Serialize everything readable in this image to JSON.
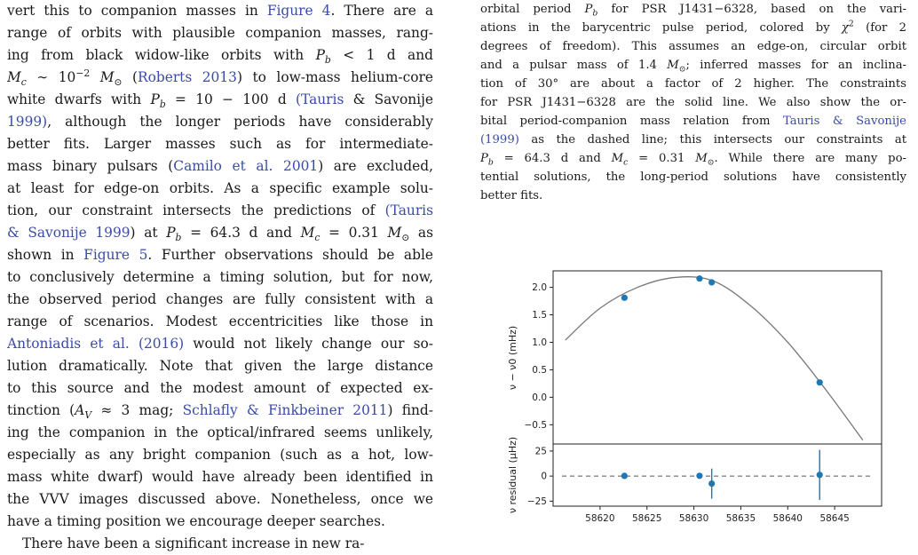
{
  "left_column": {
    "lines": [
      "vert this to companion masses in Figure 4. There are a",
      "range of orbits with plausible companion masses, rang-",
      "ing from black widow-like orbits with P_b < 1 d and",
      "M_c ∼ 10^−2 M_⊙ (Roberts 2013) to low-mass helium-core",
      "white dwarfs with P_b = 10 − 100 d (Tauris & Savonije",
      "1999), although the longer periods have considerably",
      "better fits. Larger masses such as for intermediate-",
      "mass binary pulsars (Camilo et al. 2001) are excluded,",
      "at least for edge-on orbits. As a specific example solu-",
      "tion, our constraint intersects the predictions of (Tauris",
      "& Savonije 1999) at P_b = 64.3 d and M_c = 0.31 M_⊙ as",
      "shown in Figure 5. Further observations should be able",
      "to conclusively determine a timing solution, but for now,",
      "the observed period changes are fully consistent with a",
      "range of scenarios. Modest eccentricities like those in",
      "Antoniadis et al. (2016) would not likely change our so-",
      "lution dramatically. Note that given the large distance",
      "to this source and the modest amount of expected ex-",
      "tinction (A_V ≈ 3 mag; Schlafly & Finkbeiner 2011) find-",
      "ing the companion in the optical/infrared seems unlikely,",
      "especially as any bright companion (such as a hot, low-",
      "mass white dwarf) would have already been identified in",
      "the VVV images discussed above. Nonetheless, once we",
      "have a timing position we encourage deeper searches.",
      "There have been a significant increase in new ra-"
    ]
  },
  "caption": {
    "lines": [
      "orbital period P_b for PSR J1431−6328, based on the vari-",
      "ations in the barycentric pulse period, colored by χ² (for 2",
      "degrees of freedom). This assumes an edge-on, circular orbit",
      "and a pulsar mass of 1.4 M_⊙; inferred masses for an inclina-",
      "tion of 30° are about a factor of 2 higher. The constraints",
      "for PSR J1431−6328 are the solid line. We also show the or-",
      "bital period-companion mass relation from Tauris & Savonije",
      "(1999) as the dashed line; this intersects our constraints at",
      "P_b = 64.3 d and M_c = 0.31 M_⊙. While there are many po-",
      "tential solutions, the long-period solutions have consistently",
      "better fits."
    ]
  },
  "colors": {
    "link": "#3b4ba8",
    "points": "#1f77b4",
    "model_curve": "#777777"
  },
  "chart_data": {
    "type": "scatter",
    "panels": [
      {
        "name": "frequency",
        "ylabel": "ν − ν0 (mHz)",
        "yticks": [
          "−0.5",
          "0.0",
          "0.5",
          "1.0",
          "1.5",
          "2.0"
        ],
        "ylim": [
          -0.85,
          2.3
        ],
        "points": {
          "x": [
            58622.6,
            58630.6,
            58631.9,
            58643.4
          ],
          "y": [
            1.81,
            2.16,
            2.09,
            0.27
          ]
        },
        "model_curve": {
          "x": [
            58616.3,
            58620.0,
            58624.0,
            58628.0,
            58632.0,
            58636.0,
            58640.0,
            58644.0,
            58648.0
          ],
          "y": [
            1.04,
            1.62,
            2.0,
            2.18,
            2.12,
            1.67,
            1.0,
            0.15,
            -0.78
          ]
        }
      },
      {
        "name": "residual",
        "ylabel": "ν residual (μHz)",
        "yticks": [
          "−25",
          "0",
          "25"
        ],
        "ylim": [
          -30,
          32
        ],
        "points": {
          "x": [
            58622.6,
            58630.6,
            58631.9,
            58643.4
          ],
          "y": [
            0.2,
            0.3,
            -7.5,
            1.2
          ]
        },
        "errors": [
          1.5,
          1.5,
          15.0,
          25.0
        ],
        "zero_line": "dashed"
      }
    ],
    "xticks": [
      "58620",
      "58625",
      "58630",
      "58635",
      "58640",
      "58645"
    ],
    "xlim": [
      58615.0,
      58650.0
    ]
  }
}
